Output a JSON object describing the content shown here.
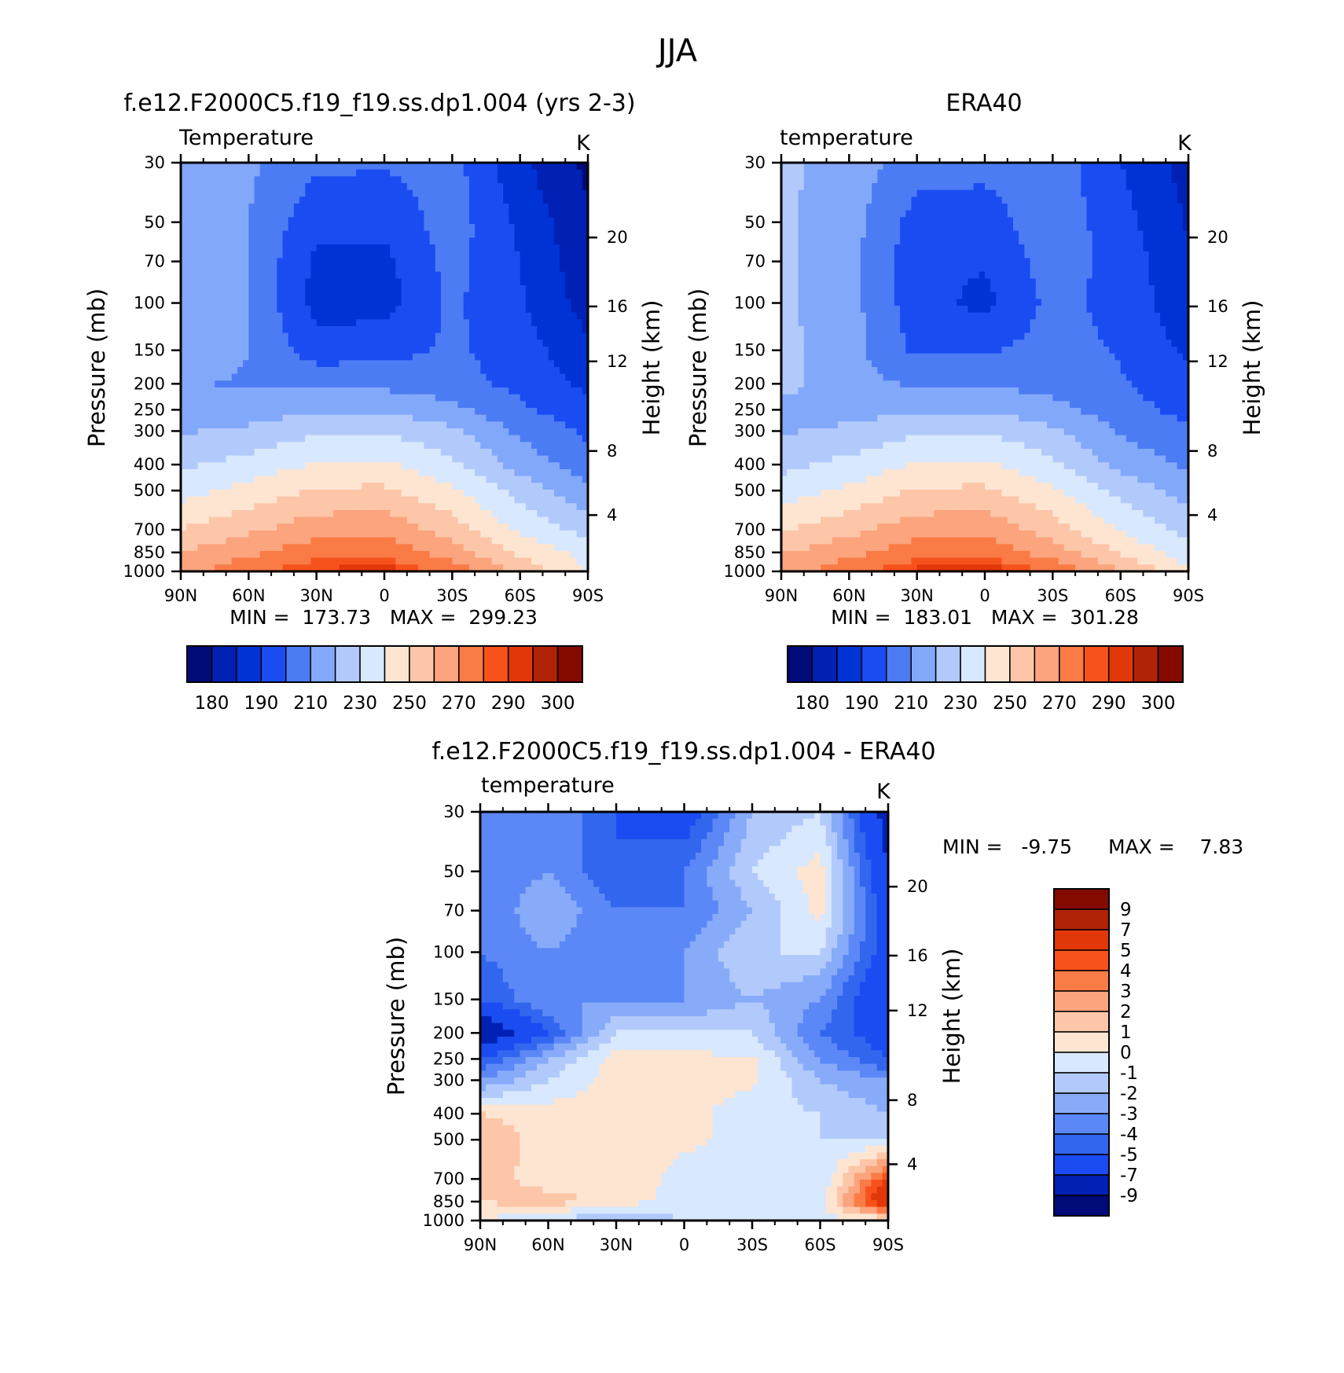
{
  "figure": {
    "title": "JJA"
  },
  "chart_data": [
    {
      "type": "heatmap",
      "panel": "model",
      "title": "f.e12.F2000C5.f19_f19.ss.dp1.004 (yrs 2-3)",
      "variable_label": "Temperature",
      "units": "K",
      "ylabel": "Pressure (mb)",
      "ylabel_right": "Height (km)",
      "x_ticks": [
        "90N",
        "60N",
        "30N",
        "0",
        "30S",
        "60S",
        "90S"
      ],
      "y_ticks": [
        30,
        50,
        70,
        100,
        150,
        200,
        250,
        300,
        400,
        500,
        700,
        850,
        1000
      ],
      "y_ticks_right": [
        20,
        16,
        12,
        8,
        4
      ],
      "y_scale": "log",
      "stats": "MIN =  173.73   MAX =  299.23",
      "min": 173.73,
      "max": 299.23,
      "colorbar_orientation": "horizontal",
      "colorbar_labels": [
        "180",
        "190",
        "210",
        "230",
        "250",
        "270",
        "290",
        "300"
      ],
      "levels": [
        180,
        190,
        200,
        210,
        220,
        230,
        240,
        250,
        260,
        270,
        280,
        290,
        295,
        300
      ],
      "lat": [
        90,
        60,
        30,
        0,
        -30,
        -60,
        -90
      ],
      "plev": [
        30,
        50,
        70,
        100,
        150,
        200,
        250,
        300,
        400,
        500,
        700,
        850,
        1000
      ],
      "values": [
        [
          228,
          222,
          212,
          211,
          214,
          192,
          178
        ],
        [
          228,
          220,
          203,
          203,
          215,
          198,
          181
        ],
        [
          228,
          220,
          198,
          197,
          214,
          200,
          183
        ],
        [
          228,
          220,
          196,
          196,
          212,
          201,
          186
        ],
        [
          227,
          220,
          205,
          206,
          212,
          205,
          192
        ],
        [
          221,
          219,
          217,
          217,
          214,
          207,
          198
        ],
        [
          222,
          225,
          229,
          229,
          223,
          212,
          203
        ],
        [
          229,
          232,
          238,
          239,
          232,
          218,
          208
        ],
        [
          238,
          244,
          251,
          252,
          242,
          226,
          215
        ],
        [
          246,
          253,
          261,
          262,
          252,
          236,
          222
        ],
        [
          260,
          268,
          276,
          277,
          265,
          248,
          236
        ],
        [
          270,
          278,
          286,
          287,
          275,
          258,
          246
        ],
        [
          276,
          287,
          296,
          299,
          286,
          268,
          250
        ]
      ]
    },
    {
      "type": "heatmap",
      "panel": "obs",
      "title": "ERA40",
      "variable_label": "temperature",
      "units": "K",
      "ylabel": "Pressure (mb)",
      "ylabel_right": "Height (km)",
      "x_ticks": [
        "90N",
        "60N",
        "30N",
        "0",
        "30S",
        "60S",
        "90S"
      ],
      "y_ticks": [
        30,
        50,
        70,
        100,
        150,
        200,
        250,
        300,
        400,
        500,
        700,
        850,
        1000
      ],
      "y_ticks_right": [
        20,
        16,
        12,
        8,
        4
      ],
      "y_scale": "log",
      "stats": "MIN =  183.01   MAX =  301.28",
      "min": 183.01,
      "max": 301.28,
      "colorbar_orientation": "horizontal",
      "colorbar_labels": [
        "180",
        "190",
        "210",
        "230",
        "250",
        "270",
        "290",
        "300"
      ],
      "levels": [
        180,
        190,
        200,
        210,
        220,
        230,
        240,
        250,
        260,
        270,
        280,
        290,
        295,
        300
      ],
      "lat": [
        90,
        60,
        30,
        0,
        -30,
        -60,
        -90
      ],
      "plev": [
        30,
        50,
        70,
        100,
        150,
        200,
        250,
        300,
        400,
        500,
        700,
        850,
        1000
      ],
      "values": [
        [
          232,
          226,
          214,
          213,
          216,
          200,
          186
        ],
        [
          232,
          224,
          206,
          205,
          217,
          204,
          189
        ],
        [
          232,
          224,
          203,
          201,
          215,
          206,
          191
        ],
        [
          232,
          224,
          204,
          197,
          213,
          207,
          193
        ],
        [
          233,
          224,
          208,
          209,
          214,
          209,
          198
        ],
        [
          234,
          223,
          219,
          219,
          216,
          211,
          203
        ],
        [
          226,
          226,
          229,
          229,
          224,
          214,
          207
        ],
        [
          229,
          232,
          238,
          239,
          232,
          219,
          211
        ],
        [
          237,
          243,
          251,
          252,
          242,
          227,
          218
        ],
        [
          245,
          252,
          261,
          262,
          252,
          237,
          225
        ],
        [
          259,
          267,
          276,
          277,
          265,
          249,
          236
        ],
        [
          269,
          277,
          286,
          287,
          275,
          259,
          244
        ],
        [
          276,
          286,
          297,
          300,
          288,
          270,
          252
        ]
      ]
    },
    {
      "type": "heatmap",
      "panel": "difference",
      "title": "f.e12.F2000C5.f19_f19.ss.dp1.004 - ERA40",
      "variable_label": "temperature",
      "units": "K",
      "ylabel": "Pressure (mb)",
      "ylabel_right": "Height (km)",
      "x_ticks": [
        "90N",
        "60N",
        "30N",
        "0",
        "30S",
        "60S",
        "90S"
      ],
      "y_ticks": [
        30,
        50,
        70,
        100,
        150,
        200,
        250,
        300,
        400,
        500,
        700,
        850,
        1000
      ],
      "y_ticks_right": [
        20,
        16,
        12,
        8,
        4
      ],
      "y_scale": "log",
      "stats_min": "MIN =   -9.75",
      "stats_max": "MAX =    7.83",
      "min": -9.75,
      "max": 7.83,
      "colorbar_orientation": "vertical",
      "colorbar_labels": [
        "9",
        "7",
        "5",
        "4",
        "3",
        "2",
        "1",
        "0",
        "-1",
        "-2",
        "-3",
        "-4",
        "-5",
        "-7",
        "-9"
      ],
      "levels": [
        -9,
        -7,
        -5,
        -4,
        -3,
        -2,
        -1,
        0,
        1,
        2,
        3,
        4,
        5,
        7,
        9
      ],
      "lat": [
        90,
        60,
        30,
        0,
        -30,
        -60,
        -90
      ],
      "plev": [
        30,
        50,
        70,
        100,
        150,
        200,
        250,
        300,
        400,
        500,
        700,
        850,
        1000
      ],
      "values": [
        [
          -4,
          -3,
          -5,
          -6,
          -2,
          -1,
          -8
        ],
        [
          -4,
          -3,
          -5,
          -4,
          -1,
          0.5,
          -7
        ],
        [
          -4,
          -2,
          -4,
          -4,
          -2,
          0.3,
          -6
        ],
        [
          -4,
          -3,
          -4,
          -3,
          -1,
          -1,
          -6
        ],
        [
          -5,
          -3,
          -3,
          -3,
          -2,
          -3,
          -7
        ],
        [
          -9,
          -5,
          -1,
          -1,
          -1,
          -4,
          -6
        ],
        [
          -5,
          -2,
          0.5,
          0.3,
          0.2,
          -3,
          -5
        ],
        [
          -3,
          -1,
          0.5,
          0.3,
          0.2,
          -2,
          -3
        ],
        [
          1,
          0.5,
          0.5,
          0.3,
          -0.5,
          -1,
          -2
        ],
        [
          2,
          0.3,
          0.3,
          0.3,
          -0.5,
          -1,
          -1
        ],
        [
          1.5,
          0.5,
          1,
          -0.5,
          -1,
          -1,
          5
        ],
        [
          1,
          1.5,
          0.5,
          -0.5,
          -1,
          -0.5,
          7
        ],
        [
          0,
          -1,
          -2,
          -1,
          -1,
          -0.5,
          0
        ]
      ]
    }
  ],
  "colors": {
    "temperature_palette": [
      "#000a78",
      "#0021b4",
      "#0033d6",
      "#1a4cf2",
      "#4c7cf4",
      "#82a8fa",
      "#b2cafb",
      "#d8e8fe",
      "#fde5d2",
      "#fdc6a8",
      "#fba47d",
      "#fa7b45",
      "#f8521c",
      "#e23809",
      "#b12306",
      "#840a00"
    ],
    "difference_palette": [
      "#000a78",
      "#0021b4",
      "#1a4cf2",
      "#3366ee",
      "#5b88f6",
      "#87abf9",
      "#b2cafb",
      "#d8e8fe",
      "#fde5d2",
      "#fdc6a8",
      "#fba47d",
      "#fa7b45",
      "#f8521c",
      "#e23809",
      "#b12306",
      "#840a00"
    ]
  }
}
